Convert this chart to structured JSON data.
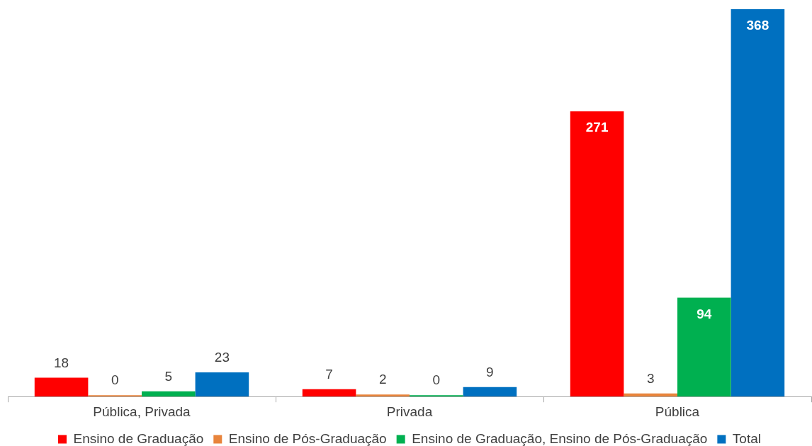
{
  "chart_data": {
    "type": "bar",
    "categories": [
      "Pública, Privada",
      "Privada",
      "Pública"
    ],
    "series": [
      {
        "name": "Ensino de Graduação",
        "color": "#ff0000",
        "values": [
          18,
          7,
          271
        ]
      },
      {
        "name": "Ensino de Pós-Graduação",
        "color": "#e8843c",
        "values": [
          0,
          2,
          3
        ]
      },
      {
        "name": "Ensino de Graduação, Ensino de Pós-Graduação",
        "color": "#00b050",
        "values": [
          5,
          0,
          94
        ]
      },
      {
        "name": "Total",
        "color": "#0070c0",
        "values": [
          23,
          9,
          368
        ]
      }
    ],
    "data_labels": true,
    "legend": "bottom",
    "tick_labels": "x"
  }
}
